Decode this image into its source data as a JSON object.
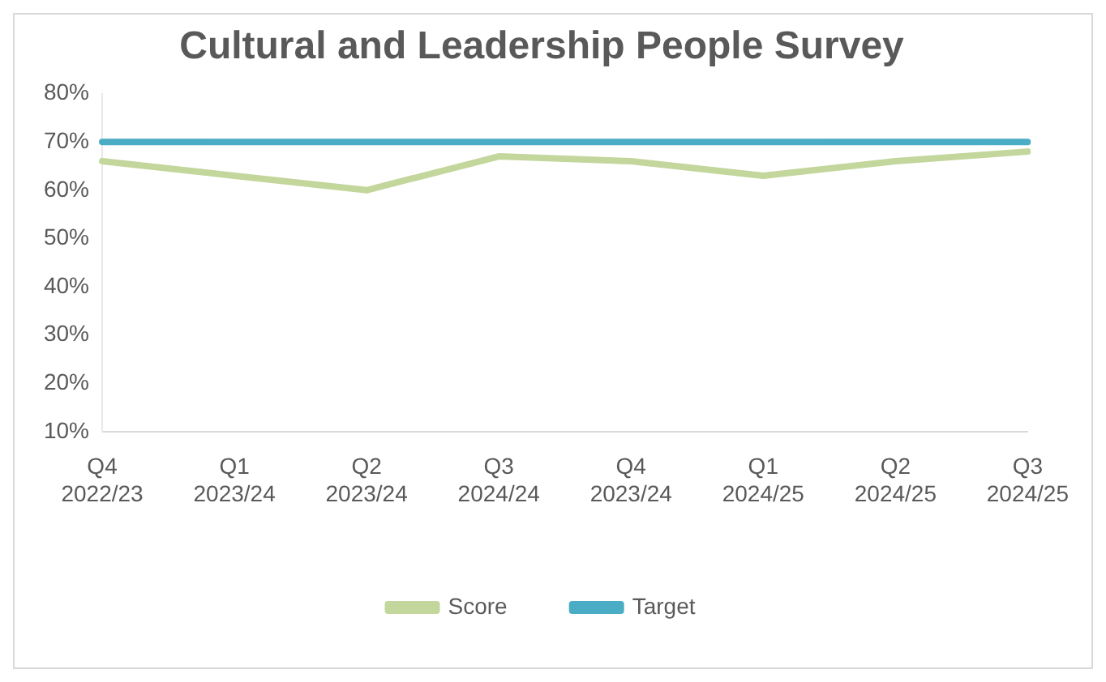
{
  "chart_data": {
    "type": "line",
    "title": "Cultural and Leadership People Survey",
    "categories": [
      "Q4 2022/23",
      "Q1 2023/24",
      "Q2 2023/24",
      "Q3 2024/24",
      "Q4 2023/24",
      "Q1 2024/25",
      "Q2 2024/25",
      "Q3 2024/25"
    ],
    "series": [
      {
        "name": "Score",
        "color": "#c3d69b",
        "values": [
          66,
          63,
          60,
          67,
          66,
          63,
          66,
          68
        ]
      },
      {
        "name": "Target",
        "color": "#4bacc6",
        "values": [
          70,
          70,
          70,
          70,
          70,
          70,
          70,
          70
        ]
      }
    ],
    "ylim": [
      10,
      80
    ],
    "yticks": [
      {
        "value": 10,
        "label": "10%"
      },
      {
        "value": 20,
        "label": "20%"
      },
      {
        "value": 30,
        "label": "30%"
      },
      {
        "value": 40,
        "label": "40%"
      },
      {
        "value": 50,
        "label": "50%"
      },
      {
        "value": 60,
        "label": "60%"
      },
      {
        "value": 70,
        "label": "70%"
      },
      {
        "value": 80,
        "label": "80%"
      }
    ],
    "grid": false,
    "legend": "bottom",
    "marker": "none",
    "line_style": "solid"
  }
}
